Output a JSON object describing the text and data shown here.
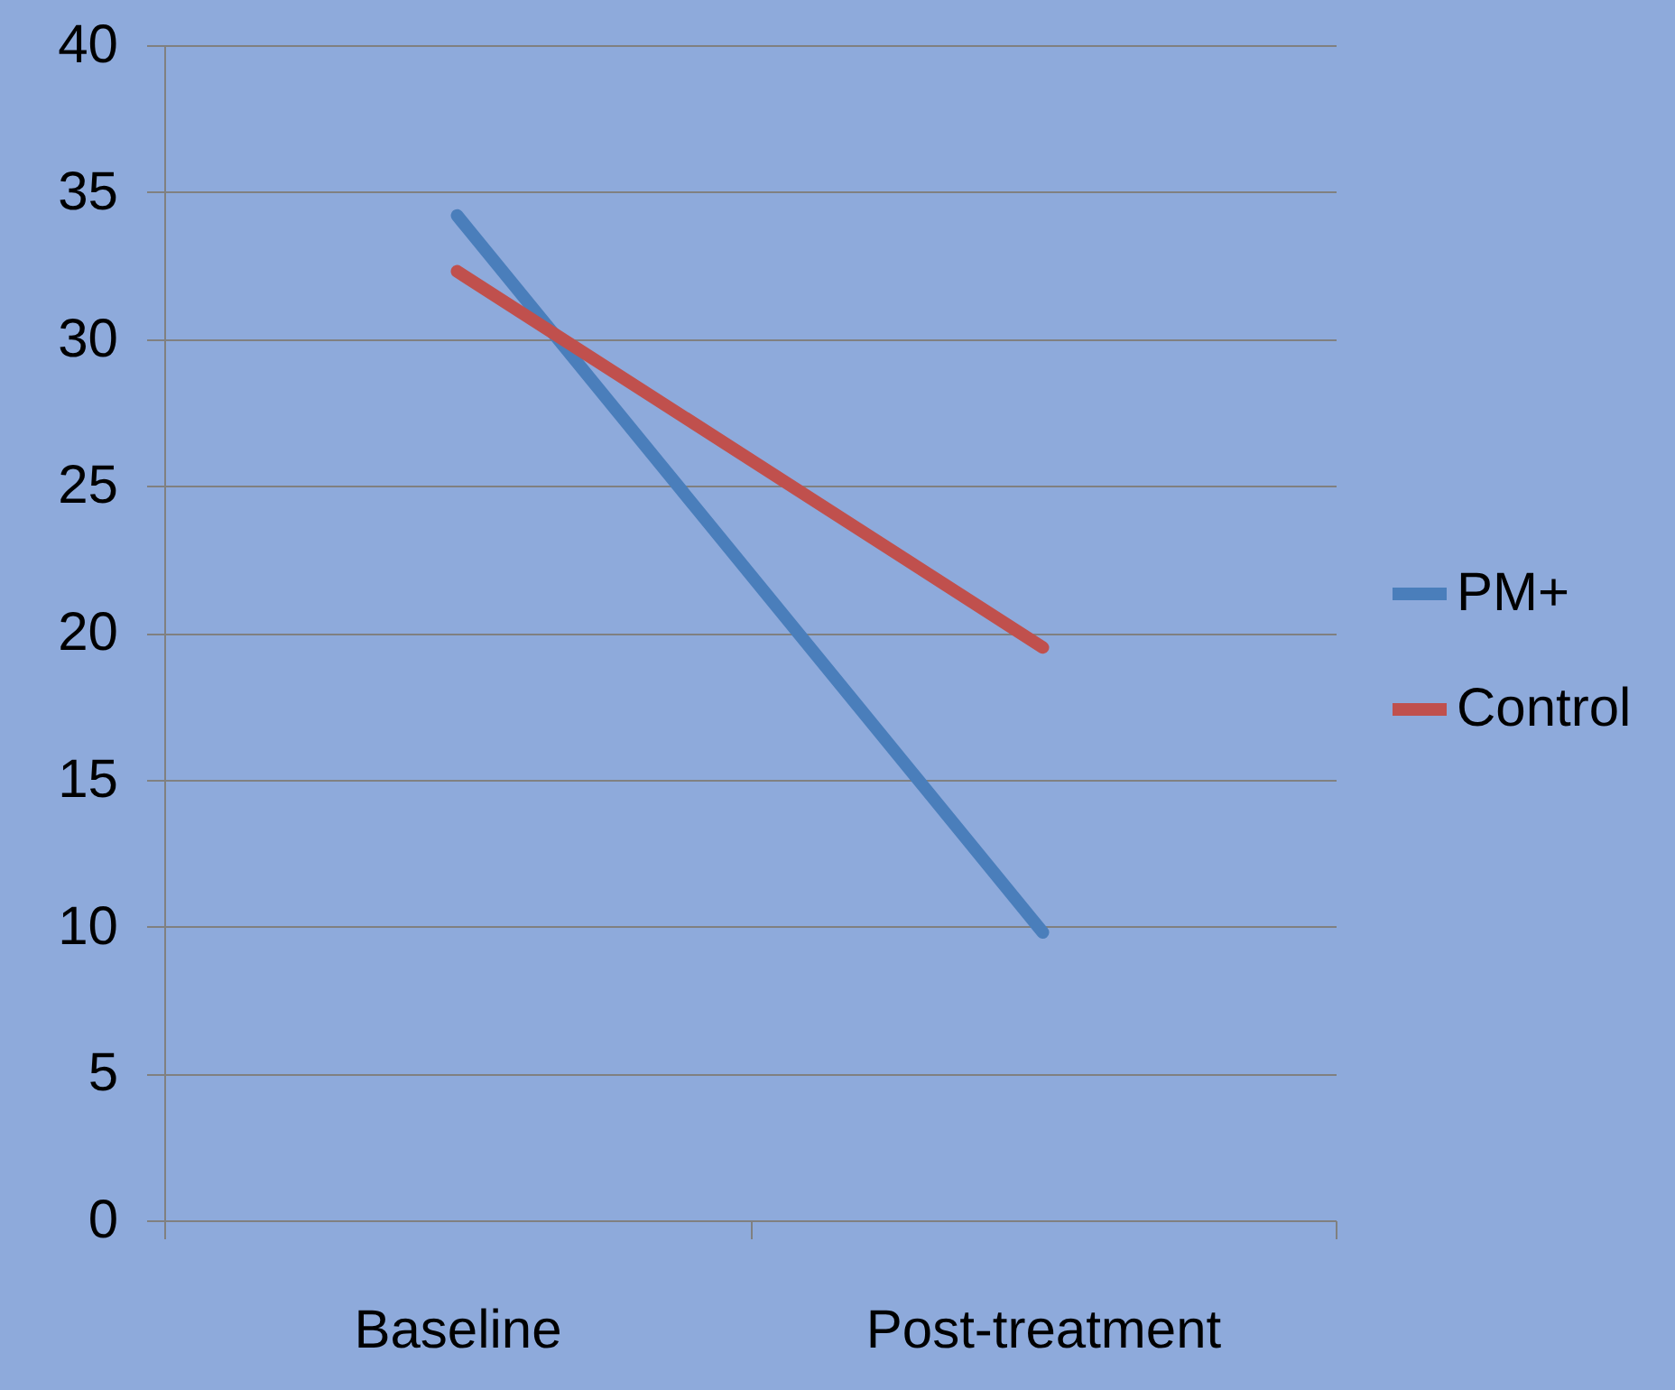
{
  "chart_data": {
    "type": "line",
    "categories": [
      "Baseline",
      "Post-treatment"
    ],
    "series": [
      {
        "name": "PM+",
        "color": "#4a7ebb",
        "values": [
          34.2,
          9.8
        ]
      },
      {
        "name": "Control",
        "color": "#c0504d",
        "values": [
          32.3,
          19.5
        ]
      }
    ],
    "ylim": [
      0,
      40
    ],
    "yticks": [
      0,
      5,
      10,
      15,
      20,
      25,
      30,
      35,
      40
    ],
    "grid": "y",
    "legend": "right",
    "marker": "none",
    "line_style": "solid"
  }
}
